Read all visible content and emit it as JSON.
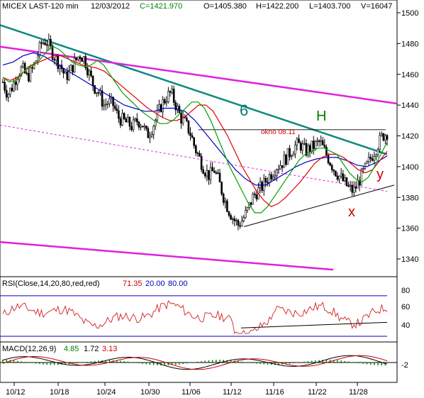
{
  "header": {
    "symbol": "MICEX LAST-120 min",
    "date": "12/03/2012",
    "close": "C=1421.970",
    "open": "O=1405.380",
    "high": "H=1422.200",
    "low": "L=1403.700",
    "volume": "V=16047"
  },
  "annotations": {
    "wave6": "6",
    "waveH": "H",
    "waveX": "x",
    "waveY": "y",
    "okno": "okno 08.11"
  },
  "rsi": {
    "label": "RSI(Close,14,20,80,red,red)",
    "value": "71.35",
    "lower": "20.00",
    "upper": "80.00",
    "ticks": [
      "80",
      "60",
      "40"
    ]
  },
  "macd": {
    "label": "MACD(12,26,9)",
    "v1": "4.85",
    "v2": "1.72",
    "v3": "3.13",
    "tick": "-2"
  },
  "colors": {
    "background": "#ffffff",
    "candles": "#000000",
    "ma_fast": "#00a000",
    "ma_mid": "#e00000",
    "ma_slow": "#0000c0",
    "trend_magenta": "#e020e0",
    "trend_teal": "#0a8a80",
    "rsi_line": "#d02020",
    "macd_hist": "#008000",
    "title_price": "#008000",
    "title_rsi_values": "#0000c0"
  },
  "chart_data": {
    "type": "candlestick",
    "timeframe": "120 min",
    "price_axis": {
      "ylim": [
        1320,
        1505
      ],
      "ticks": [
        1340,
        1360,
        1380,
        1400,
        1420,
        1440,
        1460,
        1480,
        1500
      ]
    },
    "x_ticks": [
      "10/12",
      "10/18",
      "10/24",
      "10/30",
      "11/06",
      "11/12",
      "11/16",
      "11/22",
      "11/28"
    ],
    "close_path": [
      1455,
      1447,
      1452,
      1460,
      1464,
      1458,
      1462,
      1470,
      1480,
      1482,
      1476,
      1470,
      1466,
      1458,
      1462,
      1468,
      1473,
      1470,
      1460,
      1452,
      1448,
      1440,
      1442,
      1440,
      1432,
      1430,
      1428,
      1426,
      1430,
      1428,
      1420,
      1425,
      1432,
      1440,
      1445,
      1448,
      1440,
      1432,
      1428,
      1422,
      1412,
      1405,
      1398,
      1394,
      1398,
      1390,
      1380,
      1372,
      1366,
      1362,
      1366,
      1372,
      1380,
      1384,
      1387,
      1392,
      1396,
      1400,
      1402,
      1406,
      1410,
      1414,
      1414,
      1410,
      1412,
      1414,
      1416,
      1410,
      1404,
      1398,
      1394,
      1390,
      1386,
      1384,
      1390,
      1396,
      1402,
      1408,
      1414,
      1420,
      1422
    ],
    "ma_fast_path": [
      1458,
      1455,
      1456,
      1460,
      1465,
      1466,
      1470,
      1475,
      1478,
      1476,
      1472,
      1468,
      1466,
      1465,
      1466,
      1469,
      1466,
      1460,
      1454,
      1448,
      1444,
      1440,
      1436,
      1433,
      1430,
      1428,
      1428,
      1430,
      1434,
      1438,
      1442,
      1442,
      1438,
      1430,
      1420,
      1410,
      1400,
      1392,
      1384,
      1376,
      1370,
      1370,
      1374,
      1380,
      1386,
      1392,
      1398,
      1404,
      1408,
      1410,
      1412,
      1412,
      1410,
      1408,
      1402,
      1396,
      1392,
      1390,
      1393,
      1400,
      1408,
      1416
    ],
    "ma_mid_path": [
      1458,
      1456,
      1458,
      1462,
      1466,
      1468,
      1470,
      1472,
      1472,
      1470,
      1468,
      1466,
      1465,
      1464,
      1462,
      1458,
      1454,
      1450,
      1446,
      1442,
      1438,
      1435,
      1432,
      1430,
      1430,
      1432,
      1436,
      1440,
      1440,
      1436,
      1428,
      1420,
      1410,
      1400,
      1392,
      1384,
      1378,
      1374,
      1376,
      1380,
      1385,
      1390,
      1396,
      1402,
      1406,
      1408,
      1408,
      1406,
      1402,
      1398,
      1396,
      1398,
      1404,
      1410
    ],
    "ma_slow_path": [
      1466,
      1468,
      1472,
      1474,
      1472,
      1468,
      1464,
      1460,
      1456,
      1452,
      1448,
      1444,
      1440,
      1438,
      1436,
      1436,
      1438,
      1438,
      1436,
      1430,
      1422,
      1414,
      1406,
      1398,
      1392,
      1388,
      1388,
      1392,
      1396,
      1400,
      1403,
      1405,
      1406,
      1406,
      1404,
      1401,
      1400,
      1403,
      1407
    ],
    "trendlines": [
      {
        "name": "teal downtrend",
        "from": [
          "start",
          1492
        ],
        "to": [
          "end",
          1408
        ]
      },
      {
        "name": "upper magenta channel",
        "from": [
          "start",
          1478
        ],
        "to": [
          "end",
          1441
        ]
      },
      {
        "name": "lower magenta channel",
        "from": [
          "start",
          1351
        ],
        "to": [
          "11/28",
          1333
        ]
      },
      {
        "name": "dashed magenta midline",
        "from": [
          "start",
          1427
        ],
        "to": [
          "end",
          1384
        ]
      },
      {
        "name": "support line",
        "from": [
          "11/12",
          1361
        ],
        "to": [
          "end",
          1388
        ]
      },
      {
        "name": "okno 08.11 level",
        "value": 1424
      }
    ],
    "rsi_panel": {
      "ylim": [
        20,
        90
      ],
      "levels": [
        80,
        20
      ],
      "last": 71.35
    },
    "macd_panel": {
      "last": [
        4.85,
        1.72,
        3.13
      ]
    }
  }
}
